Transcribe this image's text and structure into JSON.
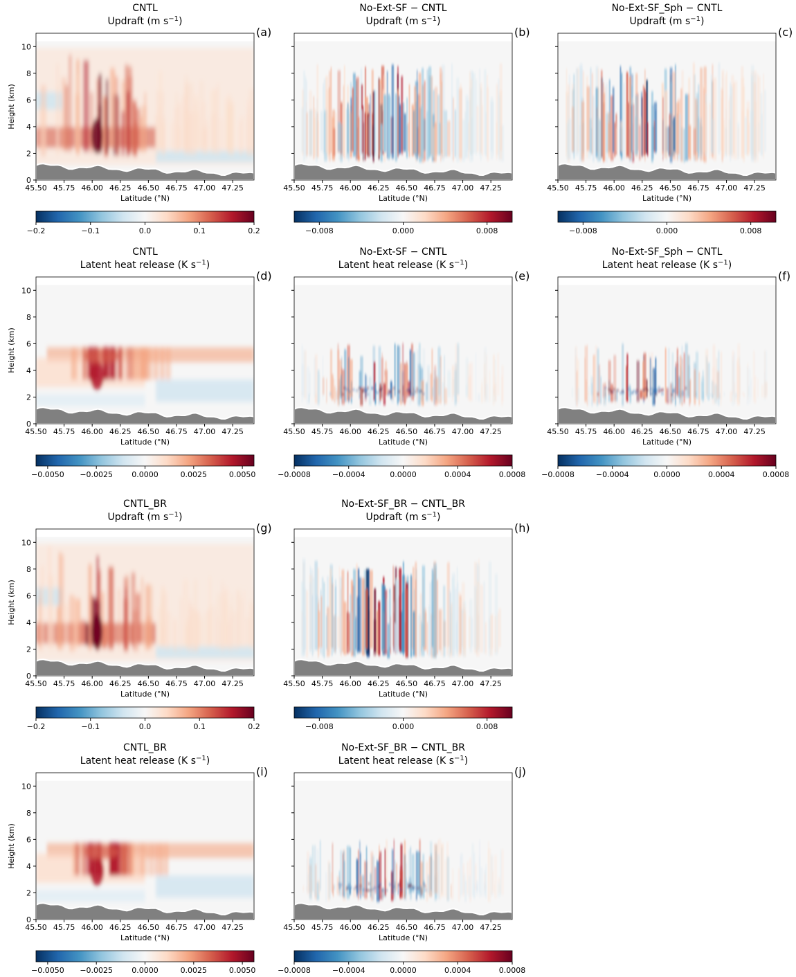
{
  "chart_data": [
    {
      "type": "heatmap",
      "label": "(a)",
      "title": "CNTL",
      "subtitle": [
        "Updraft (m s",
        "−1",
        ")"
      ],
      "xlabel": "Latitude (°N)",
      "ylabel": "Height (km)",
      "show_ytick_labels": true,
      "xlim": [
        45.5,
        47.44
      ],
      "xticks": [
        {
          "value": 45.5,
          "label": "45.50"
        },
        45.75,
        {
          "value": 46,
          "label": "46.00"
        },
        46.25,
        {
          "value": 46.5,
          "label": "46.50"
        },
        46.75,
        {
          "value": 47,
          "label": "47.00"
        },
        47.25
      ],
      "ylim": [
        0,
        11
      ],
      "yticks": [
        0,
        2,
        4,
        6,
        8,
        10
      ],
      "colorbar": {
        "lim": [
          -0.2,
          0.2
        ],
        "ticks": [
          {
            "value": -0.2,
            "label": "−0.2"
          },
          {
            "value": -0.1,
            "label": "−0.1"
          },
          {
            "value": 0,
            "label": "0.0"
          },
          0.1,
          0.2
        ]
      }
    },
    {
      "type": "heatmap",
      "label": "(b)",
      "title": "No-Ext-SF − CNTL",
      "subtitle": [
        "Updraft (m s",
        "−1",
        ")"
      ],
      "xlabel": "Latitude (°N)",
      "show_ytick_labels": false,
      "xlim": [
        45.5,
        47.44
      ],
      "xticks": [
        {
          "value": 45.5,
          "label": "45.50"
        },
        45.75,
        {
          "value": 46,
          "label": "46.00"
        },
        46.25,
        {
          "value": 46.5,
          "label": "46.50"
        },
        46.75,
        {
          "value": 47,
          "label": "47.00"
        },
        47.25
      ],
      "ylim": [
        0,
        11
      ],
      "yticks": [
        0,
        2,
        4,
        6,
        8,
        10
      ],
      "colorbar": {
        "lim": [
          -0.0104,
          0.0104
        ],
        "ticks": [
          {
            "value": -0.008,
            "label": "−0.008"
          },
          {
            "value": 0,
            "label": "0.000"
          },
          0.008
        ]
      }
    },
    {
      "type": "heatmap",
      "label": "(c)",
      "title": "No-Ext-SF_Sph − CNTL",
      "subtitle": [
        "Updraft (m s",
        "−1",
        ")"
      ],
      "xlabel": "Latitude (°N)",
      "show_ytick_labels": false,
      "xlim": [
        45.5,
        47.44
      ],
      "xticks": [
        {
          "value": 45.5,
          "label": "45.50"
        },
        45.75,
        {
          "value": 46,
          "label": "46.00"
        },
        46.25,
        {
          "value": 46.5,
          "label": "46.50"
        },
        46.75,
        {
          "value": 47,
          "label": "47.00"
        },
        47.25
      ],
      "ylim": [
        0,
        11
      ],
      "yticks": [
        0,
        2,
        4,
        6,
        8,
        10
      ],
      "colorbar": {
        "lim": [
          -0.0104,
          0.0104
        ],
        "ticks": [
          {
            "value": -0.008,
            "label": "−0.008"
          },
          {
            "value": 0,
            "label": "0.000"
          },
          0.008
        ]
      }
    },
    {
      "type": "heatmap",
      "label": "(d)",
      "title": "CNTL",
      "subtitle": [
        "Latent heat release (K s",
        "−1",
        ")"
      ],
      "xlabel": "Latitude (°N)",
      "ylabel": "Height (km)",
      "show_ytick_labels": true,
      "xlim": [
        45.5,
        47.44
      ],
      "xticks": [
        {
          "value": 45.5,
          "label": "45.50"
        },
        45.75,
        {
          "value": 46,
          "label": "46.00"
        },
        46.25,
        {
          "value": 46.5,
          "label": "46.50"
        },
        46.75,
        {
          "value": 47,
          "label": "47.00"
        },
        47.25
      ],
      "ylim": [
        0,
        11
      ],
      "yticks": [
        0,
        2,
        4,
        6,
        8,
        10
      ],
      "colorbar": {
        "lim": [
          -0.0056,
          0.0056
        ],
        "ticks": [
          {
            "value": -0.005,
            "label": "−0.0050"
          },
          {
            "value": -0.0025,
            "label": "−0.0025"
          },
          {
            "value": 0,
            "label": "0.0000"
          },
          0.0025,
          {
            "value": 0.005,
            "label": "0.0050"
          }
        ]
      }
    },
    {
      "type": "heatmap",
      "label": "(e)",
      "title": "No-Ext-SF − CNTL",
      "subtitle": [
        "Latent heat release (K s",
        "−1",
        ")"
      ],
      "xlabel": "Latitude (°N)",
      "show_ytick_labels": false,
      "xlim": [
        45.5,
        47.44
      ],
      "xticks": [
        {
          "value": 45.5,
          "label": "45.50"
        },
        45.75,
        {
          "value": 46,
          "label": "46.00"
        },
        46.25,
        {
          "value": 46.5,
          "label": "46.50"
        },
        46.75,
        {
          "value": 47,
          "label": "47.00"
        },
        47.25
      ],
      "ylim": [
        0,
        11
      ],
      "yticks": [
        0,
        2,
        4,
        6,
        8,
        10
      ],
      "colorbar": {
        "lim": [
          -0.0008,
          0.0008
        ],
        "ticks": [
          {
            "value": -0.0008,
            "label": "−0.0008"
          },
          {
            "value": -0.0004,
            "label": "−0.0004"
          },
          {
            "value": 0,
            "label": "0.0000"
          },
          0.0004,
          0.0008
        ]
      }
    },
    {
      "type": "heatmap",
      "label": "(f)",
      "title": "No-Ext-SF_Sph − CNTL",
      "subtitle": [
        "Latent heat release (K s",
        "−1",
        ")"
      ],
      "xlabel": "Latitude (°N)",
      "show_ytick_labels": false,
      "xlim": [
        45.5,
        47.44
      ],
      "xticks": [
        {
          "value": 45.5,
          "label": "45.50"
        },
        45.75,
        {
          "value": 46,
          "label": "46.00"
        },
        46.25,
        {
          "value": 46.5,
          "label": "46.50"
        },
        46.75,
        {
          "value": 47,
          "label": "47.00"
        },
        47.25
      ],
      "ylim": [
        0,
        11
      ],
      "yticks": [
        0,
        2,
        4,
        6,
        8,
        10
      ],
      "colorbar": {
        "lim": [
          -0.0008,
          0.0008
        ],
        "ticks": [
          {
            "value": -0.0008,
            "label": "−0.0008"
          },
          {
            "value": -0.0004,
            "label": "−0.0004"
          },
          {
            "value": 0,
            "label": "0.0000"
          },
          0.0004,
          0.0008
        ]
      }
    },
    {
      "type": "heatmap",
      "label": "(g)",
      "title": "CNTL_BR",
      "subtitle": [
        "Updraft (m s",
        "−1",
        ")"
      ],
      "xlabel": "Latitude (°N)",
      "ylabel": "Height (km)",
      "show_ytick_labels": true,
      "xlim": [
        45.5,
        47.44
      ],
      "xticks": [
        {
          "value": 45.5,
          "label": "45.50"
        },
        45.75,
        {
          "value": 46,
          "label": "46.00"
        },
        46.25,
        {
          "value": 46.5,
          "label": "46.50"
        },
        46.75,
        {
          "value": 47,
          "label": "47.00"
        },
        47.25
      ],
      "ylim": [
        0,
        11
      ],
      "yticks": [
        0,
        2,
        4,
        6,
        8,
        10
      ],
      "colorbar": {
        "lim": [
          -0.2,
          0.2
        ],
        "ticks": [
          {
            "value": -0.2,
            "label": "−0.2"
          },
          {
            "value": -0.1,
            "label": "−0.1"
          },
          {
            "value": 0,
            "label": "0.0"
          },
          0.1,
          0.2
        ]
      }
    },
    {
      "type": "heatmap",
      "label": "(h)",
      "title": "No-Ext-SF_BR − CNTL_BR",
      "subtitle": [
        "Updraft (m s",
        "−1",
        ")"
      ],
      "xlabel": "Latitude (°N)",
      "show_ytick_labels": false,
      "xlim": [
        45.5,
        47.44
      ],
      "xticks": [
        {
          "value": 45.5,
          "label": "45.50"
        },
        45.75,
        {
          "value": 46,
          "label": "46.00"
        },
        46.25,
        {
          "value": 46.5,
          "label": "46.50"
        },
        46.75,
        {
          "value": 47,
          "label": "47.00"
        },
        47.25
      ],
      "ylim": [
        0,
        11
      ],
      "yticks": [
        0,
        2,
        4,
        6,
        8,
        10
      ],
      "colorbar": {
        "lim": [
          -0.0104,
          0.0104
        ],
        "ticks": [
          {
            "value": -0.008,
            "label": "−0.008"
          },
          {
            "value": 0,
            "label": "0.000"
          },
          0.008
        ]
      }
    },
    {
      "type": "heatmap",
      "label": "(i)",
      "title": "CNTL_BR",
      "subtitle": [
        "Latent heat release (K s",
        "−1",
        ")"
      ],
      "xlabel": "Latitude (°N)",
      "ylabel": "Height (km)",
      "show_ytick_labels": true,
      "xlim": [
        45.5,
        47.44
      ],
      "xticks": [
        {
          "value": 45.5,
          "label": "45.50"
        },
        45.75,
        {
          "value": 46,
          "label": "46.00"
        },
        46.25,
        {
          "value": 46.5,
          "label": "46.50"
        },
        46.75,
        {
          "value": 47,
          "label": "47.00"
        },
        47.25
      ],
      "ylim": [
        0,
        11
      ],
      "yticks": [
        0,
        2,
        4,
        6,
        8,
        10
      ],
      "colorbar": {
        "lim": [
          -0.0056,
          0.0056
        ],
        "ticks": [
          {
            "value": -0.005,
            "label": "−0.0050"
          },
          {
            "value": -0.0025,
            "label": "−0.0025"
          },
          {
            "value": 0,
            "label": "0.0000"
          },
          0.0025,
          {
            "value": 0.005,
            "label": "0.0050"
          }
        ]
      }
    },
    {
      "type": "heatmap",
      "label": "(j)",
      "title": "No-Ext-SF_BR − CNTL_BR",
      "subtitle": [
        "Latent heat release (K s",
        "−1",
        ")"
      ],
      "xlabel": "Latitude (°N)",
      "show_ytick_labels": false,
      "xlim": [
        45.5,
        47.44
      ],
      "xticks": [
        {
          "value": 45.5,
          "label": "45.50"
        },
        45.75,
        {
          "value": 46,
          "label": "46.00"
        },
        46.25,
        {
          "value": 46.5,
          "label": "46.50"
        },
        46.75,
        {
          "value": 47,
          "label": "47.00"
        },
        47.25
      ],
      "ylim": [
        0,
        11
      ],
      "yticks": [
        0,
        2,
        4,
        6,
        8,
        10
      ],
      "colorbar": {
        "lim": [
          -0.0008,
          0.0008
        ],
        "ticks": [
          {
            "value": -0.0008,
            "label": "−0.0008"
          },
          {
            "value": -0.0004,
            "label": "−0.0004"
          },
          {
            "value": 0,
            "label": "0.0000"
          },
          0.0004,
          0.0008
        ]
      }
    }
  ]
}
